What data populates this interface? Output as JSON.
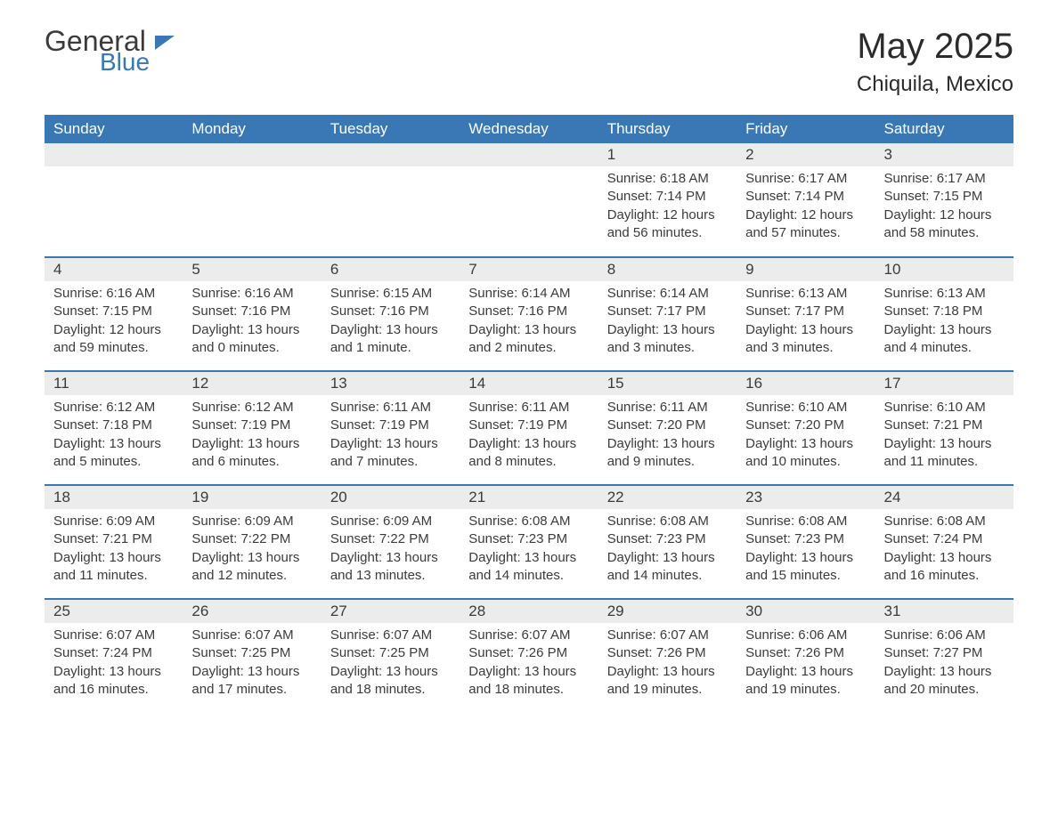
{
  "brand": {
    "part1": "General",
    "part2": "Blue"
  },
  "title": "May 2025",
  "location": "Chiquila, Mexico",
  "colors": {
    "header_bg": "#3a77b5",
    "header_text": "#ffffff",
    "daynum_bg": "#ececec",
    "text": "#3b3b3b",
    "page_bg": "#ffffff",
    "row_divider": "#3a77b5"
  },
  "typography": {
    "title_fontsize": 40,
    "location_fontsize": 24,
    "dayname_fontsize": 17,
    "daynum_fontsize": 17,
    "body_fontsize": 15,
    "font_family": "Arial"
  },
  "layout": {
    "columns": 7,
    "rows": 5,
    "first_weekday": "Sunday"
  },
  "day_names": [
    "Sunday",
    "Monday",
    "Tuesday",
    "Wednesday",
    "Thursday",
    "Friday",
    "Saturday"
  ],
  "weeks": [
    [
      null,
      null,
      null,
      null,
      {
        "n": "1",
        "sunrise": "Sunrise: 6:18 AM",
        "sunset": "Sunset: 7:14 PM",
        "daylight": "Daylight: 12 hours and 56 minutes."
      },
      {
        "n": "2",
        "sunrise": "Sunrise: 6:17 AM",
        "sunset": "Sunset: 7:14 PM",
        "daylight": "Daylight: 12 hours and 57 minutes."
      },
      {
        "n": "3",
        "sunrise": "Sunrise: 6:17 AM",
        "sunset": "Sunset: 7:15 PM",
        "daylight": "Daylight: 12 hours and 58 minutes."
      }
    ],
    [
      {
        "n": "4",
        "sunrise": "Sunrise: 6:16 AM",
        "sunset": "Sunset: 7:15 PM",
        "daylight": "Daylight: 12 hours and 59 minutes."
      },
      {
        "n": "5",
        "sunrise": "Sunrise: 6:16 AM",
        "sunset": "Sunset: 7:16 PM",
        "daylight": "Daylight: 13 hours and 0 minutes."
      },
      {
        "n": "6",
        "sunrise": "Sunrise: 6:15 AM",
        "sunset": "Sunset: 7:16 PM",
        "daylight": "Daylight: 13 hours and 1 minute."
      },
      {
        "n": "7",
        "sunrise": "Sunrise: 6:14 AM",
        "sunset": "Sunset: 7:16 PM",
        "daylight": "Daylight: 13 hours and 2 minutes."
      },
      {
        "n": "8",
        "sunrise": "Sunrise: 6:14 AM",
        "sunset": "Sunset: 7:17 PM",
        "daylight": "Daylight: 13 hours and 3 minutes."
      },
      {
        "n": "9",
        "sunrise": "Sunrise: 6:13 AM",
        "sunset": "Sunset: 7:17 PM",
        "daylight": "Daylight: 13 hours and 3 minutes."
      },
      {
        "n": "10",
        "sunrise": "Sunrise: 6:13 AM",
        "sunset": "Sunset: 7:18 PM",
        "daylight": "Daylight: 13 hours and 4 minutes."
      }
    ],
    [
      {
        "n": "11",
        "sunrise": "Sunrise: 6:12 AM",
        "sunset": "Sunset: 7:18 PM",
        "daylight": "Daylight: 13 hours and 5 minutes."
      },
      {
        "n": "12",
        "sunrise": "Sunrise: 6:12 AM",
        "sunset": "Sunset: 7:19 PM",
        "daylight": "Daylight: 13 hours and 6 minutes."
      },
      {
        "n": "13",
        "sunrise": "Sunrise: 6:11 AM",
        "sunset": "Sunset: 7:19 PM",
        "daylight": "Daylight: 13 hours and 7 minutes."
      },
      {
        "n": "14",
        "sunrise": "Sunrise: 6:11 AM",
        "sunset": "Sunset: 7:19 PM",
        "daylight": "Daylight: 13 hours and 8 minutes."
      },
      {
        "n": "15",
        "sunrise": "Sunrise: 6:11 AM",
        "sunset": "Sunset: 7:20 PM",
        "daylight": "Daylight: 13 hours and 9 minutes."
      },
      {
        "n": "16",
        "sunrise": "Sunrise: 6:10 AM",
        "sunset": "Sunset: 7:20 PM",
        "daylight": "Daylight: 13 hours and 10 minutes."
      },
      {
        "n": "17",
        "sunrise": "Sunrise: 6:10 AM",
        "sunset": "Sunset: 7:21 PM",
        "daylight": "Daylight: 13 hours and 11 minutes."
      }
    ],
    [
      {
        "n": "18",
        "sunrise": "Sunrise: 6:09 AM",
        "sunset": "Sunset: 7:21 PM",
        "daylight": "Daylight: 13 hours and 11 minutes."
      },
      {
        "n": "19",
        "sunrise": "Sunrise: 6:09 AM",
        "sunset": "Sunset: 7:22 PM",
        "daylight": "Daylight: 13 hours and 12 minutes."
      },
      {
        "n": "20",
        "sunrise": "Sunrise: 6:09 AM",
        "sunset": "Sunset: 7:22 PM",
        "daylight": "Daylight: 13 hours and 13 minutes."
      },
      {
        "n": "21",
        "sunrise": "Sunrise: 6:08 AM",
        "sunset": "Sunset: 7:23 PM",
        "daylight": "Daylight: 13 hours and 14 minutes."
      },
      {
        "n": "22",
        "sunrise": "Sunrise: 6:08 AM",
        "sunset": "Sunset: 7:23 PM",
        "daylight": "Daylight: 13 hours and 14 minutes."
      },
      {
        "n": "23",
        "sunrise": "Sunrise: 6:08 AM",
        "sunset": "Sunset: 7:23 PM",
        "daylight": "Daylight: 13 hours and 15 minutes."
      },
      {
        "n": "24",
        "sunrise": "Sunrise: 6:08 AM",
        "sunset": "Sunset: 7:24 PM",
        "daylight": "Daylight: 13 hours and 16 minutes."
      }
    ],
    [
      {
        "n": "25",
        "sunrise": "Sunrise: 6:07 AM",
        "sunset": "Sunset: 7:24 PM",
        "daylight": "Daylight: 13 hours and 16 minutes."
      },
      {
        "n": "26",
        "sunrise": "Sunrise: 6:07 AM",
        "sunset": "Sunset: 7:25 PM",
        "daylight": "Daylight: 13 hours and 17 minutes."
      },
      {
        "n": "27",
        "sunrise": "Sunrise: 6:07 AM",
        "sunset": "Sunset: 7:25 PM",
        "daylight": "Daylight: 13 hours and 18 minutes."
      },
      {
        "n": "28",
        "sunrise": "Sunrise: 6:07 AM",
        "sunset": "Sunset: 7:26 PM",
        "daylight": "Daylight: 13 hours and 18 minutes."
      },
      {
        "n": "29",
        "sunrise": "Sunrise: 6:07 AM",
        "sunset": "Sunset: 7:26 PM",
        "daylight": "Daylight: 13 hours and 19 minutes."
      },
      {
        "n": "30",
        "sunrise": "Sunrise: 6:06 AM",
        "sunset": "Sunset: 7:26 PM",
        "daylight": "Daylight: 13 hours and 19 minutes."
      },
      {
        "n": "31",
        "sunrise": "Sunrise: 6:06 AM",
        "sunset": "Sunset: 7:27 PM",
        "daylight": "Daylight: 13 hours and 20 minutes."
      }
    ]
  ]
}
